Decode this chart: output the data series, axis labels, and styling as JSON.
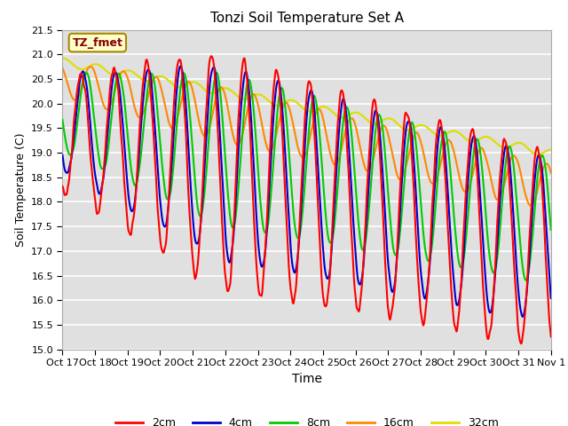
{
  "title": "Tonzi Soil Temperature Set A",
  "xlabel": "Time",
  "ylabel": "Soil Temperature (C)",
  "ylim": [
    15.0,
    21.5
  ],
  "yticks": [
    15.0,
    15.5,
    16.0,
    16.5,
    17.0,
    17.5,
    18.0,
    18.5,
    19.0,
    19.5,
    20.0,
    20.5,
    21.0,
    21.5
  ],
  "xtick_labels": [
    "Oct 17",
    "Oct 18",
    "Oct 19",
    "Oct 20",
    "Oct 21",
    "Oct 22",
    "Oct 23",
    "Oct 24",
    "Oct 25",
    "Oct 26",
    "Oct 27",
    "Oct 28",
    "Oct 29",
    "Oct 30",
    "Oct 31",
    "Nov 1"
  ],
  "colors": {
    "2cm": "#ff0000",
    "4cm": "#0000cc",
    "8cm": "#00cc00",
    "16cm": "#ff8800",
    "32cm": "#dddd00"
  },
  "bg_color": "#ffffff",
  "plot_bg_color": "#e0e0e0",
  "grid_color": "#ffffff",
  "annotation_text": "TZ_fmet",
  "annotation_color": "#880000",
  "annotation_bg": "#ffffcc",
  "annotation_border": "#aa8800"
}
